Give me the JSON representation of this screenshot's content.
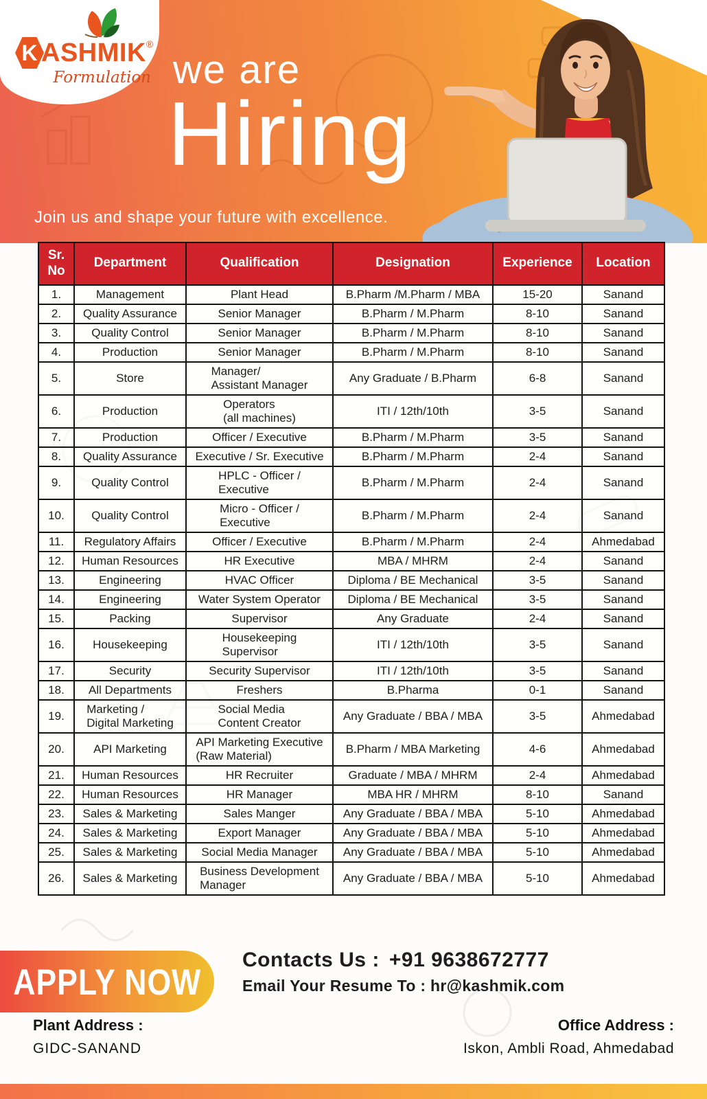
{
  "colors": {
    "hero_gradient_start": "#ec614f",
    "hero_gradient_end": "#f9b535",
    "table_header_red": "#d0232b",
    "brand_orange": "#e8551f",
    "apply_gradient_start": "#ec4a3f",
    "apply_gradient_end": "#f0bf2e"
  },
  "logo": {
    "brand_first_letter": "K",
    "brand_rest": "ASHMIK",
    "registered_mark": "®",
    "subtitle": "Formulation"
  },
  "hero": {
    "line1": "we are",
    "line2": "Hiring",
    "tagline": "Join us and shape your future with excellence."
  },
  "table": {
    "headers": [
      "Sr.\nNo",
      "Department",
      "Qualification",
      "Designation",
      "Experience",
      "Location"
    ],
    "rows": [
      {
        "sr": "1.",
        "department": "Management",
        "qualification": "Plant Head",
        "designation": "B.Pharm /M.Pharm / MBA",
        "experience": "15-20",
        "location": "Sanand"
      },
      {
        "sr": "2.",
        "department": "Quality Assurance",
        "qualification": "Senior Manager",
        "designation": "B.Pharm / M.Pharm",
        "experience": "8-10",
        "location": "Sanand"
      },
      {
        "sr": "3.",
        "department": "Quality Control",
        "qualification": "Senior Manager",
        "designation": "B.Pharm / M.Pharm",
        "experience": "8-10",
        "location": "Sanand"
      },
      {
        "sr": "4.",
        "department": "Production",
        "qualification": "Senior Manager",
        "designation": "B.Pharm / M.Pharm",
        "experience": "8-10",
        "location": "Sanand"
      },
      {
        "sr": "5.",
        "department": "Store",
        "qualification": "Manager/\nAssistant Manager",
        "designation": "Any Graduate / B.Pharm",
        "experience": "6-8",
        "location": "Sanand"
      },
      {
        "sr": "6.",
        "department": "Production",
        "qualification": "Operators\n(all machines)",
        "designation": "ITI / 12th/10th",
        "experience": "3-5",
        "location": "Sanand"
      },
      {
        "sr": "7.",
        "department": "Production",
        "qualification": "Officer / Executive",
        "designation": "B.Pharm / M.Pharm",
        "experience": "3-5",
        "location": "Sanand"
      },
      {
        "sr": "8.",
        "department": "Quality Assurance",
        "qualification": "Executive / Sr. Executive",
        "designation": "B.Pharm / M.Pharm",
        "experience": "2-4",
        "location": "Sanand"
      },
      {
        "sr": "9.",
        "department": "Quality Control",
        "qualification": "HPLC - Officer /\nExecutive",
        "designation": "B.Pharm / M.Pharm",
        "experience": "2-4",
        "location": "Sanand"
      },
      {
        "sr": "10.",
        "department": "Quality Control",
        "qualification": "Micro - Officer /\nExecutive",
        "designation": "B.Pharm / M.Pharm",
        "experience": "2-4",
        "location": "Sanand"
      },
      {
        "sr": "11.",
        "department": "Regulatory Affairs",
        "qualification": "Officer / Executive",
        "designation": "B.Pharm / M.Pharm",
        "experience": "2-4",
        "location": "Ahmedabad"
      },
      {
        "sr": "12.",
        "department": "Human Resources",
        "qualification": "HR Executive",
        "designation": "MBA / MHRM",
        "experience": "2-4",
        "location": "Sanand"
      },
      {
        "sr": "13.",
        "department": "Engineering",
        "qualification": "HVAC Officer",
        "designation": "Diploma / BE Mechanical",
        "experience": "3-5",
        "location": "Sanand"
      },
      {
        "sr": "14.",
        "department": "Engineering",
        "qualification": "Water System Operator",
        "designation": "Diploma / BE Mechanical",
        "experience": "3-5",
        "location": "Sanand"
      },
      {
        "sr": "15.",
        "department": "Packing",
        "qualification": "Supervisor",
        "designation": "Any Graduate",
        "experience": "2-4",
        "location": "Sanand"
      },
      {
        "sr": "16.",
        "department": "Housekeeping",
        "qualification": "Housekeeping\nSupervisor",
        "designation": "ITI / 12th/10th",
        "experience": "3-5",
        "location": "Sanand"
      },
      {
        "sr": "17.",
        "department": "Security",
        "qualification": "Security Supervisor",
        "designation": "ITI / 12th/10th",
        "experience": "3-5",
        "location": "Sanand"
      },
      {
        "sr": "18.",
        "department": "All Departments",
        "qualification": "Freshers",
        "designation": "B.Pharma",
        "experience": "0-1",
        "location": "Sanand"
      },
      {
        "sr": "19.",
        "department": "Marketing /\nDigital Marketing",
        "qualification": "Social Media\nContent Creator",
        "designation": "Any Graduate / BBA / MBA",
        "experience": "3-5",
        "location": "Ahmedabad"
      },
      {
        "sr": "20.",
        "department": "API Marketing",
        "qualification": "API Marketing Executive\n(Raw Material)",
        "designation": "B.Pharm / MBA Marketing",
        "experience": "4-6",
        "location": "Ahmedabad"
      },
      {
        "sr": "21.",
        "department": "Human Resources",
        "qualification": "HR Recruiter",
        "designation": "Graduate / MBA / MHRM",
        "experience": "2-4",
        "location": "Ahmedabad"
      },
      {
        "sr": "22.",
        "department": "Human Resources",
        "qualification": "HR Manager",
        "designation": "MBA HR / MHRM",
        "experience": "8-10",
        "location": "Sanand"
      },
      {
        "sr": "23.",
        "department": "Sales & Marketing",
        "qualification": "Sales Manger",
        "designation": "Any Graduate / BBA / MBA",
        "experience": "5-10",
        "location": "Ahmedabad"
      },
      {
        "sr": "24.",
        "department": "Sales & Marketing",
        "qualification": "Export Manager",
        "designation": "Any Graduate / BBA / MBA",
        "experience": "5-10",
        "location": "Ahmedabad"
      },
      {
        "sr": "25.",
        "department": "Sales & Marketing",
        "qualification": "Social Media Manager",
        "designation": "Any Graduate / BBA / MBA",
        "experience": "5-10",
        "location": "Ahmedabad"
      },
      {
        "sr": "26.",
        "department": "Sales & Marketing",
        "qualification": "Business Development\nManager",
        "designation": "Any Graduate / BBA / MBA",
        "experience": "5-10",
        "location": "Ahmedabad"
      }
    ]
  },
  "footer": {
    "apply_label": "APPLY NOW",
    "contact_label": "Contacts Us :",
    "contact_phone": "+91 9638672777",
    "email_label": "Email Your Resume To :",
    "email_address": "hr@kashmik.com",
    "plant_address_label": "Plant Address :",
    "plant_address": "GIDC-SANAND",
    "office_address_label": "Office Address :",
    "office_address": "Iskon, Ambli Road, Ahmedabad"
  }
}
